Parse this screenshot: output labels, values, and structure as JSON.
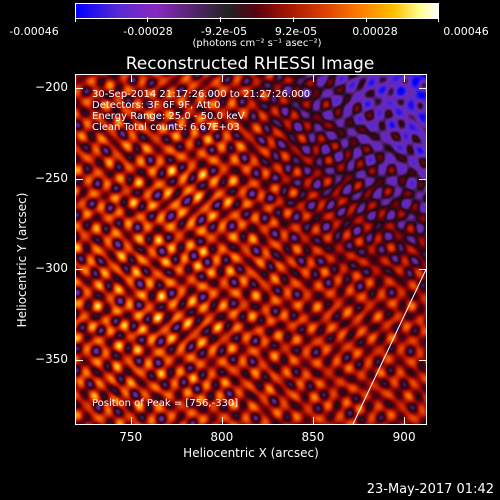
{
  "colorbar": {
    "labels": [
      "-0.00046",
      "-0.00028",
      "-9.2e-05",
      "9.2e-05",
      "0.00028",
      "0.00046"
    ],
    "units": "(photons cm⁻² s⁻¹ asec⁻²)",
    "range": [
      -0.00046,
      0.00046
    ]
  },
  "title": "Reconstructed RHESSI Image",
  "annotations": {
    "time": "30-Sep-2014 21:17:26.000 to 21:27:26.000",
    "detectors": "Detectors: 3F 6F 9F, Att 0",
    "energy": "Energy Range: 25.0 - 50.0 keV",
    "clean": "Clean     Total counts: 6.67E+03",
    "peak": "Position of Peak = [756,-330]"
  },
  "chart_data": {
    "type": "heatmap",
    "title": "Reconstructed RHESSI Image",
    "xlabel": "Heliocentric X (arcsec)",
    "ylabel": "Heliocentric Y (arcsec)",
    "xlim": [
      720,
      912
    ],
    "ylim": [
      -385,
      -193
    ],
    "xticks": [
      750,
      800,
      850,
      900
    ],
    "yticks": [
      -200,
      -250,
      -300,
      -350
    ],
    "xtick_labels": [
      "750",
      "800",
      "850",
      "900"
    ],
    "ytick_labels": [
      "−200",
      "−250",
      "−300",
      "−350"
    ],
    "value_range": [
      -0.00046,
      0.00046
    ],
    "peak_position": [
      756,
      -330
    ],
    "colormap": "blue-purple-black-red-orange-yellow-white",
    "limb_line": [
      [
        872,
        -385
      ],
      [
        912,
        -300
      ]
    ]
  },
  "footer": "23-May-2017 01:42"
}
